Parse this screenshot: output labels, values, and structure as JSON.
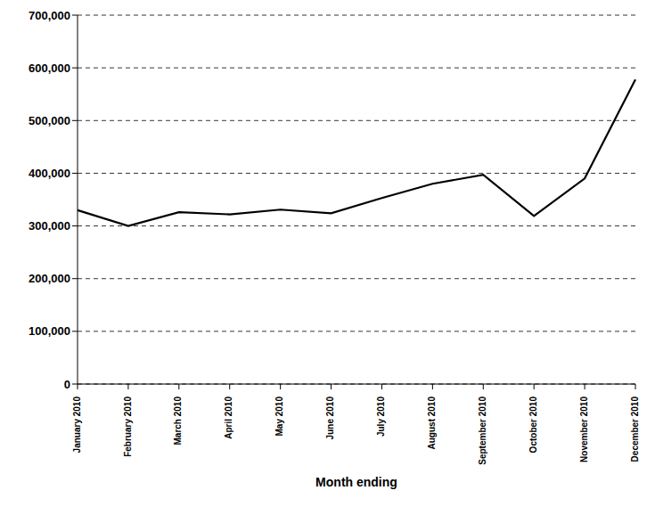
{
  "chart_data": {
    "type": "line",
    "x_label": "Month ending",
    "categories": [
      "January 2010",
      "February 2010",
      "March 2010",
      "April 2010",
      "May 2010",
      "June 2010",
      "July 2010",
      "August 2010",
      "September 2010",
      "October 2010",
      "November 2010",
      "December 2010"
    ],
    "values": [
      330000,
      300000,
      326000,
      322000,
      331000,
      324000,
      353000,
      380000,
      397000,
      319000,
      390000,
      578000
    ],
    "color": "#000000",
    "ylim": [
      0,
      700000
    ],
    "yticks": [
      0,
      {
        "value": 100000,
        "label": "100,000"
      },
      {
        "value": 200000,
        "label": "200,000"
      },
      {
        "value": 300000,
        "label": "300,000"
      },
      {
        "value": 400000,
        "label": "400,000"
      },
      {
        "value": 500000,
        "label": "500,000"
      },
      {
        "value": 600000,
        "label": "600,000"
      },
      {
        "value": 700000,
        "label": "700,000"
      }
    ],
    "grid": true
  }
}
